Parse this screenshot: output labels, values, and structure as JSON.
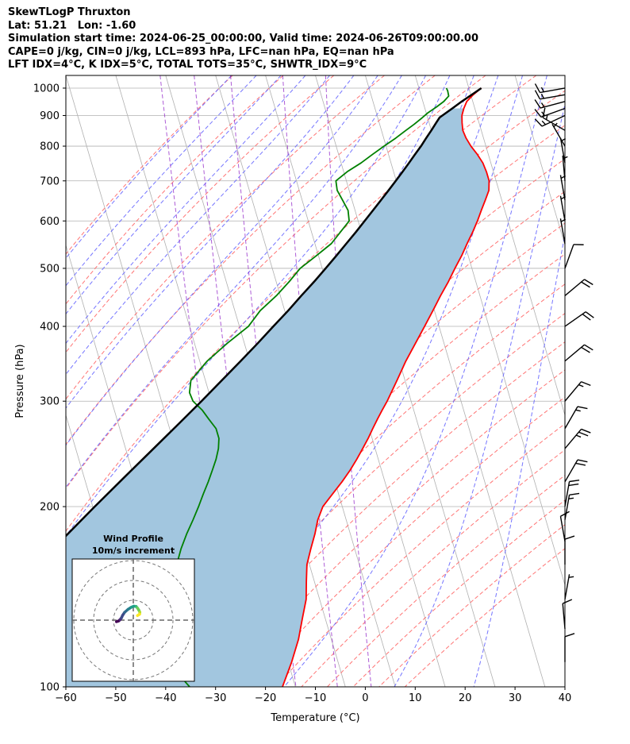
{
  "header": {
    "lines": [
      "SkewTLogP Thruxton",
      "Lat: 51.21   Lon: -1.60",
      "Simulation start time: 2024-06-25_00:00:00, Valid time: 2024-06-26T09:00:00.00",
      "CAPE=0 j/kg, CIN=0 j/kg, LCL=893 hPa, LFC=nan hPa, EQ=nan hPa",
      "LFT IDX=4$^\\circ$C, K IDX=5$^\\circ$C, TOTAL TOTS=35$^\\circ$C, SHWTR_IDX=9$^\\circ$C"
    ]
  },
  "chart_data": {
    "type": "line",
    "subtype": "skew-t log-p",
    "xlabel": "Temperature ($^\\circ$C)",
    "ylabel": "Pressure (hPa)",
    "xlim": [
      -60,
      40
    ],
    "ylim": [
      1050,
      100
    ],
    "x_ticks": [
      -60,
      -50,
      -40,
      -30,
      -20,
      -10,
      0,
      10,
      20,
      30,
      40
    ],
    "x_tick_labels": [
      "−60",
      "−50",
      "−40",
      "−30",
      "−20",
      "−10",
      "0",
      "10",
      "20",
      "30",
      "40"
    ],
    "y_ticks": [
      1000,
      900,
      800,
      700,
      600,
      500,
      400,
      300,
      200,
      100
    ],
    "y_tick_labels": [
      "1000",
      "900",
      "800",
      "700",
      "600",
      "500",
      "400",
      "300",
      "200",
      "100"
    ],
    "grid": true,
    "colors": {
      "temperature": "#ff0000",
      "dewpoint": "#008000",
      "parcel": "#000000",
      "fill": "#a2c6df",
      "dry_adiabat": "#ff6666",
      "moist_adiabat": "#6666ff",
      "mixing_ratio": "#9933cc",
      "isotherm": "#b0b0b0",
      "grid": "#b0b0b0"
    },
    "series": [
      {
        "key": "temperature",
        "points": [
          [
            1000,
            22.5
          ],
          [
            975,
            20.5
          ],
          [
            950,
            18.8
          ],
          [
            925,
            17.8
          ],
          [
            900,
            17.0
          ],
          [
            875,
            16.6
          ],
          [
            850,
            16.3
          ],
          [
            825,
            16.5
          ],
          [
            800,
            17.0
          ],
          [
            775,
            17.8
          ],
          [
            750,
            18.4
          ],
          [
            725,
            18.6
          ],
          [
            700,
            18.6
          ],
          [
            675,
            18.0
          ],
          [
            650,
            16.7
          ],
          [
            625,
            15.3
          ],
          [
            600,
            13.9
          ],
          [
            575,
            12.3
          ],
          [
            550,
            10.5
          ],
          [
            525,
            8.7
          ],
          [
            500,
            6.6
          ],
          [
            475,
            4.5
          ],
          [
            450,
            2.1
          ],
          [
            425,
            -0.3
          ],
          [
            400,
            -2.9
          ],
          [
            375,
            -5.7
          ],
          [
            350,
            -8.7
          ],
          [
            325,
            -11.6
          ],
          [
            300,
            -14.8
          ],
          [
            290,
            -16.3
          ],
          [
            280,
            -17.8
          ],
          [
            270,
            -19.3
          ],
          [
            260,
            -20.8
          ],
          [
            250,
            -22.5
          ],
          [
            240,
            -24.3
          ],
          [
            230,
            -26.3
          ],
          [
            220,
            -28.6
          ],
          [
            210,
            -31.2
          ],
          [
            200,
            -33.9
          ],
          [
            190,
            -35.7
          ],
          [
            180,
            -37.1
          ],
          [
            170,
            -38.8
          ],
          [
            160,
            -40.5
          ],
          [
            150,
            -41.6
          ],
          [
            140,
            -42.7
          ],
          [
            130,
            -44.6
          ],
          [
            120,
            -46.6
          ],
          [
            110,
            -49.3
          ],
          [
            100,
            -52.6
          ]
        ]
      },
      {
        "key": "dewpoint",
        "points": [
          [
            1000,
            15.5
          ],
          [
            990,
            15.6
          ],
          [
            970,
            15.5
          ],
          [
            950,
            14.2
          ],
          [
            930,
            12.4
          ],
          [
            910,
            10.4
          ],
          [
            890,
            8.7
          ],
          [
            870,
            6.9
          ],
          [
            850,
            4.9
          ],
          [
            825,
            2.4
          ],
          [
            800,
            -0.4
          ],
          [
            775,
            -3.2
          ],
          [
            750,
            -6.0
          ],
          [
            725,
            -9.3
          ],
          [
            700,
            -12.1
          ],
          [
            675,
            -12.4
          ],
          [
            650,
            -11.9
          ],
          [
            625,
            -11.4
          ],
          [
            600,
            -11.8
          ],
          [
            575,
            -14.2
          ],
          [
            550,
            -16.7
          ],
          [
            525,
            -20.4
          ],
          [
            500,
            -24.4
          ],
          [
            475,
            -27.4
          ],
          [
            450,
            -30.8
          ],
          [
            425,
            -34.9
          ],
          [
            400,
            -38.2
          ],
          [
            375,
            -43.4
          ],
          [
            350,
            -48.5
          ],
          [
            325,
            -52.9
          ],
          [
            310,
            -53.9
          ],
          [
            300,
            -53.7
          ],
          [
            290,
            -52.4
          ],
          [
            280,
            -51.6
          ],
          [
            270,
            -50.7
          ],
          [
            260,
            -50.7
          ],
          [
            250,
            -51.4
          ],
          [
            240,
            -52.5
          ],
          [
            230,
            -53.9
          ],
          [
            220,
            -55.4
          ],
          [
            210,
            -57.1
          ],
          [
            200,
            -58.8
          ],
          [
            190,
            -60.7
          ],
          [
            180,
            -62.8
          ],
          [
            170,
            -64.8
          ],
          [
            160,
            -66.6
          ],
          [
            150,
            -68.9
          ],
          [
            140,
            -71.5
          ],
          [
            130,
            -74.2
          ],
          [
            120,
            -75.6
          ],
          [
            110,
            -74.1
          ],
          [
            100,
            -71.2
          ]
        ]
      },
      {
        "key": "parcel",
        "points": [
          [
            1000,
            22.5
          ],
          [
            975,
            20.2
          ],
          [
            950,
            17.8
          ],
          [
            925,
            15.5
          ],
          [
            893,
            12.4
          ],
          [
            875,
            11.4
          ],
          [
            850,
            10.0
          ],
          [
            825,
            8.5
          ],
          [
            800,
            7.0
          ],
          [
            775,
            5.3
          ],
          [
            750,
            3.6
          ],
          [
            725,
            1.8
          ],
          [
            700,
            -0.1
          ],
          [
            675,
            -2.1
          ],
          [
            650,
            -4.2
          ],
          [
            625,
            -6.4
          ],
          [
            600,
            -8.7
          ],
          [
            575,
            -11.1
          ],
          [
            550,
            -13.7
          ],
          [
            525,
            -16.4
          ],
          [
            500,
            -19.3
          ],
          [
            475,
            -22.4
          ],
          [
            450,
            -25.8
          ],
          [
            425,
            -29.3
          ],
          [
            400,
            -33.2
          ],
          [
            375,
            -37.3
          ],
          [
            350,
            -41.8
          ],
          [
            325,
            -46.7
          ],
          [
            300,
            -52.0
          ],
          [
            275,
            -57.9
          ],
          [
            250,
            -64.4
          ],
          [
            225,
            -71.6
          ],
          [
            200,
            -79.6
          ],
          [
            175,
            -88.5
          ],
          [
            150,
            -98.5
          ],
          [
            125,
            -110.0
          ],
          [
            100,
            -123.5
          ]
        ]
      }
    ],
    "wind_barbs": {
      "pressures": [
        1000,
        975,
        950,
        925,
        900,
        850,
        800,
        750,
        700,
        650,
        600,
        550,
        500,
        450,
        400,
        350,
        300,
        270,
        250,
        220,
        200,
        190,
        175,
        160,
        140,
        125,
        110
      ],
      "speed_knots": [
        15,
        15,
        15,
        15,
        15,
        15,
        5,
        5,
        5,
        5,
        5,
        5,
        10,
        20,
        20,
        20,
        15,
        15,
        25,
        20,
        20,
        15,
        10,
        10,
        5,
        10,
        10
      ],
      "direction_deg": [
        260,
        260,
        255,
        250,
        245,
        300,
        330,
        350,
        355,
        350,
        350,
        350,
        20,
        50,
        55,
        50,
        40,
        30,
        40,
        30,
        10,
        10,
        350,
        0,
        10,
        355,
        0
      ]
    },
    "inset": {
      "title_line1": "Wind Profile",
      "title_line2": "10m/s increment",
      "hodograph_u_ms": [
        -8.5,
        -7.4,
        -6.7,
        -6.0,
        -5.4,
        -4.4,
        -2.7,
        -1.0,
        0.2,
        1.4,
        2.1,
        2.8,
        3.3,
        3.2,
        2.1
      ],
      "hodograph_v_ms": [
        -0.8,
        -0.4,
        0.2,
        1.1,
        2.4,
        3.9,
        5.4,
        6.5,
        7.0,
        6.9,
        6.1,
        5.0,
        4.0,
        3.0,
        2.3
      ]
    }
  }
}
